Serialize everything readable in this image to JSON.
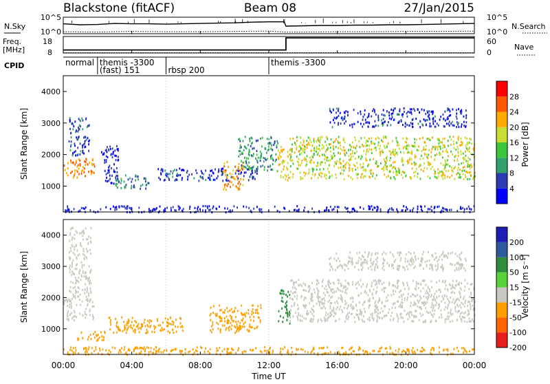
{
  "header": {
    "title": "Blackstone (fitACF)",
    "beam": "Beam 08",
    "date": "27/Jan/2015"
  },
  "noise_panel": {
    "left_label": "N.Sky",
    "right_label": "N.Search",
    "left_ticks": [
      "10^5",
      "10^0"
    ],
    "right_ticks": [
      "10^5",
      "10^0"
    ]
  },
  "freq_panel": {
    "left_label_line1": "Freq.",
    "left_label_line2": "[MHz]",
    "right_label": "Nave",
    "left_ticks": [
      "18",
      "8"
    ],
    "right_ticks": [
      "60",
      "0"
    ]
  },
  "cpid": {
    "label": "CPID",
    "segments": [
      {
        "start_hour": 0.0,
        "lines": [
          "normal",
          ""
        ]
      },
      {
        "start_hour": 2.0,
        "lines": [
          "themis -3300",
          "(fast) 151"
        ]
      },
      {
        "start_hour": 6.0,
        "lines": [
          "",
          "rbsp 200"
        ]
      },
      {
        "start_hour": 12.0,
        "lines": [
          "themis -3300",
          ""
        ]
      }
    ]
  },
  "xaxis": {
    "label": "Time UT",
    "ticks": [
      "00:00",
      "04:00",
      "08:00",
      "12:00",
      "16:00",
      "20:00",
      "00:00"
    ]
  },
  "power_panel": {
    "ylabel": "Slant Range [km]",
    "yticks": [
      "1000",
      "2000",
      "3000",
      "4000"
    ],
    "colorbar_label": "Power [dB]",
    "colorbar_ticks": [
      "4",
      "8",
      "12",
      "16",
      "20",
      "24",
      "28"
    ]
  },
  "velocity_panel": {
    "ylabel": "Slant Range [km]",
    "yticks": [
      "1000",
      "2000",
      "3000",
      "4000"
    ],
    "colorbar_label": "Velocity [m s⁻¹]",
    "colorbar_ticks": [
      "200",
      "100",
      "50",
      "15",
      "-15",
      "-50",
      "-100",
      "-200"
    ]
  },
  "colors": {
    "power_scale": [
      "#0000ff",
      "#2a3cb4",
      "#34a06e",
      "#3cc83c",
      "#c8dc32",
      "#ffaa00",
      "#ff5a00",
      "#ff0000"
    ],
    "velocity_scale": [
      "#1e1eb4",
      "#2e5aa0",
      "#2e8c3c",
      "#5ad23c",
      "#c8c8c0",
      "#ffa000",
      "#ff6400",
      "#e61e1e",
      "#ff0000"
    ]
  },
  "chart_data": [
    {
      "type": "line",
      "title": "Blackstone (fitACF)",
      "panel": "noise",
      "x_range": [
        0,
        24
      ],
      "series": [
        {
          "name": "N.Sky",
          "x": [
            0,
            1,
            2,
            3,
            4,
            5,
            6,
            7,
            8,
            9,
            10,
            11,
            12,
            12.9,
            13,
            14,
            15,
            16,
            17,
            18,
            19,
            20,
            21,
            22,
            23,
            24
          ],
          "values": [
            3.0,
            2.7,
            2.8,
            3.1,
            3.0,
            3.0,
            2.9,
            3.0,
            3.1,
            3.2,
            3.3,
            3.5,
            3.6,
            3.6,
            2.3,
            2.4,
            2.5,
            2.5,
            2.6,
            2.6,
            2.7,
            2.7,
            2.8,
            2.9,
            3.0,
            3.1
          ]
        },
        {
          "name": "N.Search",
          "x": [
            0,
            2,
            4,
            6,
            8,
            10,
            12,
            13,
            14,
            16,
            18,
            20,
            22,
            24
          ],
          "values": [
            0.6,
            0.5,
            0.7,
            0.6,
            0.6,
            0.7,
            0.8,
            0.5,
            0.5,
            0.6,
            0.6,
            0.7,
            0.7,
            0.8
          ]
        }
      ]
    },
    {
      "type": "line",
      "panel": "frequency",
      "x_range": [
        0,
        24
      ],
      "series": [
        {
          "name": "Freq",
          "x": [
            0,
            13,
            13,
            24
          ],
          "values": [
            10,
            10,
            18,
            18
          ]
        },
        {
          "name": "Nave",
          "x": [
            0,
            24
          ],
          "values": [
            1,
            1
          ]
        }
      ]
    },
    {
      "type": "heatmap",
      "panel": "power",
      "xlabel": "Time UT",
      "ylabel": "Slant Range [km]",
      "x_range": [
        0,
        24
      ],
      "y_range": [
        180,
        4500
      ],
      "zlabel": "Power [dB]",
      "z_range": [
        0,
        32
      ],
      "regions": [
        {
          "t": [
            0.0,
            1.8
          ],
          "r": [
            1300,
            1900
          ],
          "z": 24
        },
        {
          "t": [
            0.3,
            1.5
          ],
          "r": [
            2000,
            3200
          ],
          "z": 6
        },
        {
          "t": [
            2.2,
            3.2
          ],
          "r": [
            1100,
            2300
          ],
          "z": 4
        },
        {
          "t": [
            3.0,
            5.0
          ],
          "r": [
            950,
            1400
          ],
          "z": 9
        },
        {
          "t": [
            5.5,
            11.5
          ],
          "r": [
            1200,
            1600
          ],
          "z": 5
        },
        {
          "t": [
            9.3,
            10.5
          ],
          "r": [
            900,
            1800
          ],
          "z": 22
        },
        {
          "t": [
            10.2,
            12.5
          ],
          "r": [
            1500,
            2600
          ],
          "z": 10
        },
        {
          "t": [
            12.5,
            13.2
          ],
          "r": [
            1200,
            2300
          ],
          "z": 20
        },
        {
          "t": [
            13.2,
            24.0
          ],
          "r": [
            1250,
            2600
          ],
          "z": 18
        },
        {
          "t": [
            15.5,
            23.5
          ],
          "r": [
            2900,
            3500
          ],
          "z": 5
        },
        {
          "t": [
            0.0,
            24.0
          ],
          "r": [
            200,
            400
          ],
          "z": 4
        }
      ]
    },
    {
      "type": "heatmap",
      "panel": "velocity",
      "xlabel": "Time UT",
      "ylabel": "Slant Range [km]",
      "x_range": [
        0,
        24
      ],
      "y_range": [
        180,
        4500
      ],
      "zlabel": "Velocity [m s⁻¹]",
      "z_range": [
        -200,
        200
      ],
      "regions": [
        {
          "t": [
            0.0,
            1.8
          ],
          "r": [
            1300,
            2000
          ],
          "z": 0
        },
        {
          "t": [
            0.3,
            1.6
          ],
          "r": [
            2000,
            4300
          ],
          "z": 0
        },
        {
          "t": [
            0.8,
            2.5
          ],
          "r": [
            650,
            950
          ],
          "z": -60
        },
        {
          "t": [
            2.5,
            7.0
          ],
          "r": [
            900,
            1400
          ],
          "z": -60
        },
        {
          "t": [
            8.5,
            11.5
          ],
          "r": [
            900,
            1800
          ],
          "z": -40
        },
        {
          "t": [
            12.5,
            13.2
          ],
          "r": [
            1200,
            2300
          ],
          "z": 40
        },
        {
          "t": [
            13.2,
            24.0
          ],
          "r": [
            1250,
            2600
          ],
          "z": 0
        },
        {
          "t": [
            15.5,
            23.5
          ],
          "r": [
            2900,
            3500
          ],
          "z": 0
        },
        {
          "t": [
            0.0,
            24.0
          ],
          "r": [
            200,
            450
          ],
          "z": -60
        }
      ]
    }
  ]
}
